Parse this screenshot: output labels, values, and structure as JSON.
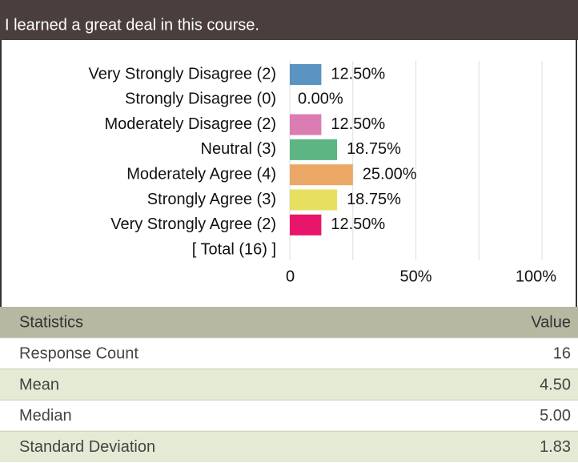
{
  "chart_data": {
    "type": "barh",
    "title": "I learned a great deal in this course.",
    "categories": [
      "Very Strongly Disagree (2)",
      "Strongly Disagree (0)",
      "Moderately Disagree (2)",
      "Neutral (3)",
      "Moderately Agree (4)",
      "Strongly Agree (3)",
      "Very Strongly Agree (2)"
    ],
    "values": [
      12.5,
      0,
      12.5,
      18.75,
      25,
      18.75,
      12.5
    ],
    "value_labels": [
      "12.50%",
      "0.00%",
      "12.50%",
      "18.75%",
      "25.00%",
      "18.75%",
      "12.50%"
    ],
    "colors": [
      "#5b93c3",
      "#8a8a8a",
      "#db7cb2",
      "#5cb582",
      "#eba765",
      "#e6df5f",
      "#e8156b"
    ],
    "total_label": "[ Total (16) ]",
    "xlim": [
      0,
      100
    ],
    "xticks": [
      0,
      {
        "value": 50,
        "label": "50%"
      },
      {
        "value": 100,
        "label": "100%"
      }
    ],
    "xgrid": [
      0,
      25,
      50,
      75,
      100
    ]
  },
  "table": {
    "header": [
      "Statistics",
      "Value"
    ],
    "rows": [
      [
        "Response Count",
        "16"
      ],
      [
        "Mean",
        "4.50"
      ],
      [
        "Median",
        "5.00"
      ],
      [
        "Standard Deviation",
        "1.83"
      ]
    ]
  }
}
